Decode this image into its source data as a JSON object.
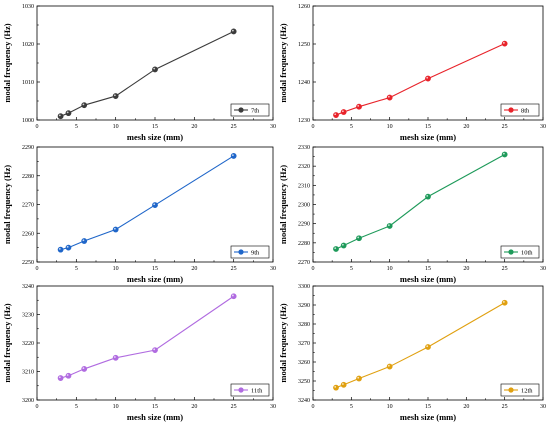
{
  "chart_data": [
    {
      "type": "line",
      "xlabel": "mesh size (mm)",
      "ylabel": "modal frequency (Hz)",
      "xlim": [
        0,
        30
      ],
      "ylim": [
        1000,
        1030
      ],
      "xticks": [
        0,
        5,
        10,
        15,
        20,
        25,
        30
      ],
      "yticks": [
        1000,
        1010,
        1020,
        1030
      ],
      "legend_position": "bottom-right",
      "series": [
        {
          "name": "7th",
          "color": "#3b3b3b",
          "x": [
            3,
            4,
            6,
            10,
            15,
            25
          ],
          "y": [
            1001.0,
            1001.8,
            1003.9,
            1006.3,
            1013.3,
            1023.3
          ]
        }
      ]
    },
    {
      "type": "line",
      "xlabel": "mesh size (mm)",
      "ylabel": "modal frequency (Hz)",
      "xlim": [
        0,
        30
      ],
      "ylim": [
        1230,
        1260
      ],
      "xticks": [
        0,
        5,
        10,
        15,
        20,
        25,
        30
      ],
      "yticks": [
        1230,
        1240,
        1250,
        1260
      ],
      "legend_position": "bottom-right",
      "series": [
        {
          "name": "8th",
          "color": "#e8232a",
          "x": [
            3,
            4,
            6,
            10,
            15,
            25
          ],
          "y": [
            1231.3,
            1232.1,
            1233.5,
            1235.9,
            1240.9,
            1250.1
          ]
        }
      ]
    },
    {
      "type": "line",
      "xlabel": "mesh size (mm)",
      "ylabel": "modal frequency (Hz)",
      "xlim": [
        0,
        30
      ],
      "ylim": [
        2250,
        2290
      ],
      "xticks": [
        0,
        5,
        10,
        15,
        20,
        25,
        30
      ],
      "yticks": [
        2250,
        2260,
        2270,
        2280,
        2290
      ],
      "legend_position": "bottom-right",
      "series": [
        {
          "name": "9th",
          "color": "#1f66c9",
          "x": [
            3,
            4,
            6,
            10,
            15,
            25
          ],
          "y": [
            2254.3,
            2255.0,
            2257.3,
            2261.3,
            2269.8,
            2286.9
          ]
        }
      ]
    },
    {
      "type": "line",
      "xlabel": "mesh size (mm)",
      "ylabel": "modal frequency (Hz)",
      "xlim": [
        0,
        30
      ],
      "ylim": [
        2270,
        2330
      ],
      "xticks": [
        0,
        5,
        10,
        15,
        20,
        25,
        30
      ],
      "yticks": [
        2270,
        2280,
        2290,
        2300,
        2310,
        2320,
        2330
      ],
      "legend_position": "bottom-right",
      "series": [
        {
          "name": "10th",
          "color": "#1e9a5a",
          "x": [
            3,
            4,
            6,
            10,
            15,
            25
          ],
          "y": [
            2276.8,
            2278.6,
            2282.4,
            2288.8,
            2304.1,
            2326.1
          ]
        }
      ]
    },
    {
      "type": "line",
      "xlabel": "mesh size (mm)",
      "ylabel": "modal frequency (Hz)",
      "xlim": [
        0,
        30
      ],
      "ylim": [
        3200,
        3240
      ],
      "xticks": [
        0,
        5,
        10,
        15,
        20,
        25,
        30
      ],
      "yticks": [
        3200,
        3210,
        3220,
        3230,
        3240
      ],
      "legend_position": "bottom-right",
      "series": [
        {
          "name": "11th",
          "color": "#b06be0",
          "x": [
            3,
            4,
            6,
            10,
            15,
            25
          ],
          "y": [
            3207.7,
            3208.5,
            3210.9,
            3214.8,
            3217.5,
            3236.4
          ]
        }
      ]
    },
    {
      "type": "line",
      "xlabel": "mesh size (mm)",
      "ylabel": "modal frequency (Hz)",
      "xlim": [
        0,
        30
      ],
      "ylim": [
        3240,
        3300
      ],
      "xticks": [
        0,
        5,
        10,
        15,
        20,
        25,
        30
      ],
      "yticks": [
        3240,
        3250,
        3260,
        3270,
        3280,
        3290,
        3300
      ],
      "legend_position": "bottom-right",
      "series": [
        {
          "name": "12th",
          "color": "#e0a010",
          "x": [
            3,
            4,
            6,
            10,
            15,
            25
          ],
          "y": [
            3246.5,
            3248.0,
            3251.3,
            3257.6,
            3267.9,
            3291.2
          ]
        }
      ]
    }
  ]
}
